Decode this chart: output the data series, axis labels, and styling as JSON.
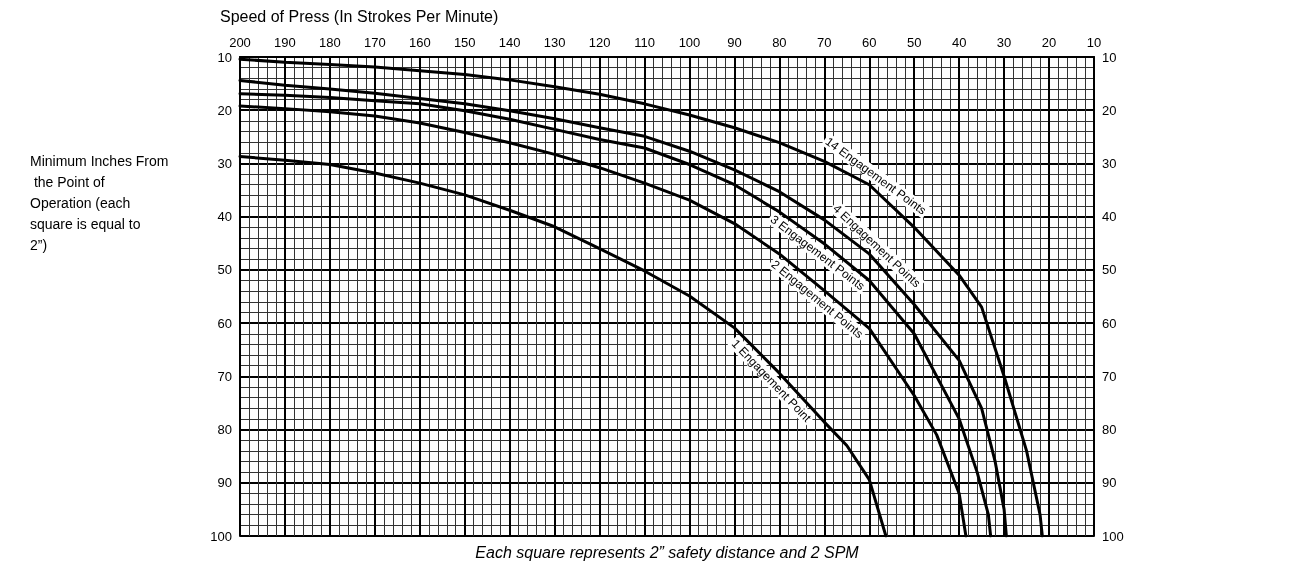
{
  "chart_data": {
    "type": "line",
    "xlabel": "Speed of Press (In Strokes Per Minute)",
    "ylabel": "Minimum Inches From the Point of Operation (each square is equal to 2”)",
    "xlim": [
      200,
      10
    ],
    "xticks": [
      200,
      190,
      180,
      170,
      160,
      150,
      140,
      130,
      120,
      110,
      100,
      90,
      80,
      70,
      60,
      50,
      40,
      30,
      20,
      10
    ],
    "ylim": [
      100,
      10
    ],
    "yticks": [
      10,
      20,
      30,
      40,
      50,
      60,
      70,
      80,
      90,
      100
    ],
    "y2lim": [
      100,
      10
    ],
    "y2ticks": [
      10,
      20,
      30,
      40,
      50,
      60,
      70,
      80,
      90,
      100
    ],
    "grid": true,
    "marker": "none",
    "line_style": "solid",
    "series": [
      {
        "color": "#000000",
        "x": [
          200,
          190,
          180,
          170,
          160,
          150,
          140,
          130,
          120,
          110,
          100,
          90,
          80,
          70,
          60,
          50,
          40,
          35,
          30,
          25,
          22,
          21.5
        ],
        "values": [
          10.4,
          11,
          11.4,
          11.9,
          12.6,
          13.3,
          14.3,
          15.6,
          17,
          18.8,
          20.9,
          23.3,
          26.1,
          29.6,
          34,
          42,
          51,
          57,
          70,
          84,
          96,
          100
        ]
      },
      {
        "color": "#000000",
        "x": [
          200,
          190,
          180,
          170,
          160,
          150,
          140,
          130,
          120,
          110,
          100,
          90,
          80,
          70,
          60,
          50,
          40,
          35,
          32,
          30,
          29.5
        ],
        "values": [
          14.4,
          15.3,
          16,
          16.8,
          17.8,
          18.8,
          20.1,
          21.6,
          23.3,
          24.9,
          27.7,
          31.2,
          35.3,
          40.6,
          47,
          56.5,
          67,
          76,
          86,
          95,
          100
        ]
      },
      {
        "color": "#000000",
        "x": [
          200,
          190,
          180,
          170,
          160,
          150,
          140,
          130,
          120,
          110,
          100,
          90,
          80,
          70,
          60,
          50,
          40,
          36,
          33.5,
          33
        ],
        "values": [
          16.9,
          17.2,
          17.6,
          18.2,
          18.8,
          20.1,
          21.7,
          23.6,
          25.5,
          27.1,
          30.2,
          34,
          39.1,
          45.1,
          52,
          62,
          78,
          88,
          96,
          100
        ]
      },
      {
        "color": "#000000",
        "x": [
          200,
          190,
          180,
          170,
          160,
          150,
          140,
          130,
          120,
          110,
          100,
          90,
          80,
          70,
          60,
          50,
          45,
          40,
          38.5
        ],
        "values": [
          19.2,
          19.7,
          20.3,
          21.1,
          22.4,
          24.2,
          26.1,
          28.3,
          30.8,
          33.7,
          36.9,
          41.3,
          47,
          53.9,
          61,
          73.6,
          81,
          92,
          100
        ]
      },
      {
        "color": "#000000",
        "x": [
          200,
          190,
          180,
          170,
          160,
          150,
          140,
          130,
          120,
          110,
          100,
          90,
          80,
          70,
          65,
          60,
          56.3
        ],
        "values": [
          28.7,
          29.4,
          30.2,
          31.8,
          33.7,
          35.9,
          38.8,
          41.9,
          46,
          50.2,
          54.9,
          60.9,
          69.4,
          78.6,
          83,
          89.4,
          100
        ]
      }
    ],
    "annotations": [
      {
        "text": "14 Engagement Points",
        "x": 60,
        "y": 34
      },
      {
        "text": "4 Engagement Points",
        "x": 60,
        "y": 47
      },
      {
        "text": "3 Engagement Points",
        "x": 70,
        "y": 45.1
      },
      {
        "text": "2 Engagement Points",
        "x": 70,
        "y": 53.9
      },
      {
        "text": "1 Engagement Point",
        "x": 80,
        "y": 69.4
      },
      "Each square represents 2” safety distance and 2 SPM"
    ]
  }
}
